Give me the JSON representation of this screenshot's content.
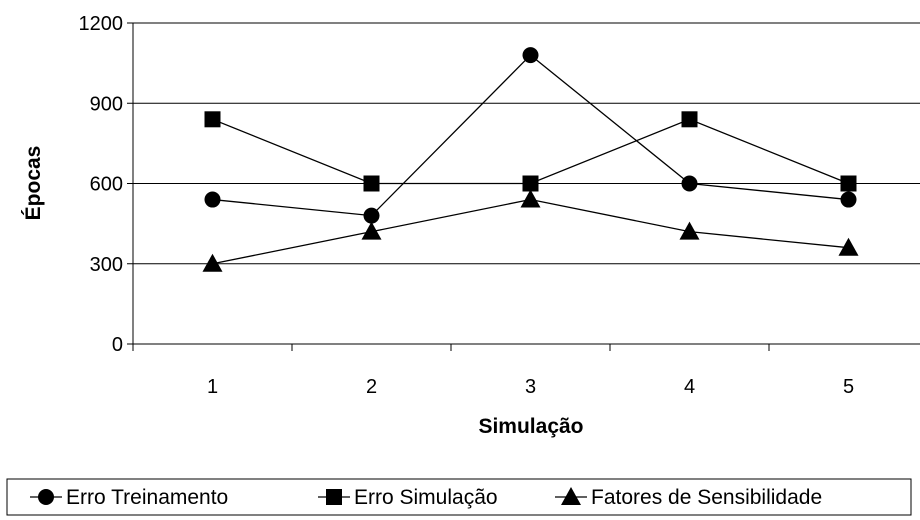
{
  "chart_data": {
    "type": "line",
    "categories": [
      "1",
      "2",
      "3",
      "4",
      "5"
    ],
    "xlabel": "Simulação",
    "ylabel": "Épocas",
    "ylim": [
      0,
      1200
    ],
    "yticks": [
      0,
      300,
      600,
      900,
      1200
    ],
    "grid": "horizontal",
    "legend_position": "bottom",
    "series": [
      {
        "name": "Erro Treinamento",
        "marker": "circle",
        "values": [
          540,
          480,
          1080,
          600,
          540
        ]
      },
      {
        "name": "Erro Simulação",
        "marker": "square",
        "values": [
          840,
          600,
          600,
          840,
          600
        ]
      },
      {
        "name": "Fatores de Sensibilidade",
        "marker": "triangle",
        "values": [
          300,
          420,
          540,
          420,
          360
        ]
      }
    ]
  }
}
